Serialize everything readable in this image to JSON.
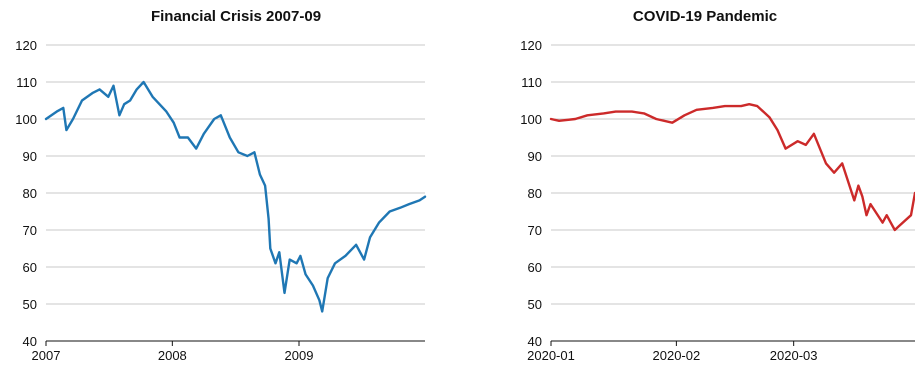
{
  "chart_data": [
    {
      "type": "line",
      "title": "Financial Crisis 2007-09",
      "xlabel": "",
      "ylabel": "",
      "ylim": [
        40,
        120
      ],
      "yticks": [
        40,
        50,
        60,
        70,
        80,
        90,
        100,
        110,
        120
      ],
      "xlim": [
        "2007-01-01",
        "2009-12-31"
      ],
      "xticks": [
        "2007",
        "2008",
        "2009"
      ],
      "grid": true,
      "color": "#1f77b4",
      "series": [
        {
          "x": [
            "2007-01-01",
            "2007-02-01",
            "2007-02-20",
            "2007-03-01",
            "2007-03-20",
            "2007-04-15",
            "2007-05-15",
            "2007-06-05",
            "2007-06-30",
            "2007-07-15",
            "2007-08-01",
            "2007-08-15",
            "2007-09-01",
            "2007-09-20",
            "2007-10-10",
            "2007-11-05",
            "2007-11-25",
            "2007-12-15",
            "2008-01-05",
            "2008-01-22",
            "2008-02-15",
            "2008-03-10",
            "2008-04-01",
            "2008-05-01",
            "2008-05-20",
            "2008-06-15",
            "2008-07-10",
            "2008-08-05",
            "2008-08-25",
            "2008-09-10",
            "2008-09-25",
            "2008-10-05",
            "2008-10-10",
            "2008-10-25",
            "2008-11-05",
            "2008-11-20",
            "2008-12-05",
            "2008-12-25",
            "2009-01-05",
            "2009-01-20",
            "2009-02-10",
            "2009-03-01",
            "2009-03-09",
            "2009-03-25",
            "2009-04-15",
            "2009-05-15",
            "2009-06-15",
            "2009-07-08",
            "2009-07-25",
            "2009-08-20",
            "2009-09-20",
            "2009-10-20",
            "2009-11-15",
            "2009-12-15",
            "2009-12-31"
          ],
          "values": [
            100,
            102,
            103,
            97,
            100,
            105,
            107,
            108,
            106,
            109,
            101,
            104,
            105,
            108,
            110,
            106,
            104,
            102,
            99,
            95,
            95,
            92,
            96,
            100,
            101,
            95,
            91,
            90,
            91,
            85,
            82,
            73,
            65,
            61,
            64,
            53,
            62,
            61,
            63,
            58,
            55,
            51,
            48,
            57,
            61,
            63,
            66,
            62,
            68,
            72,
            75,
            76,
            77,
            78,
            79
          ]
        }
      ]
    },
    {
      "type": "line",
      "title": "COVID-19 Pandemic",
      "xlabel": "",
      "ylabel": "",
      "ylim": [
        40,
        120
      ],
      "yticks": [
        40,
        50,
        60,
        70,
        80,
        90,
        100,
        110,
        120
      ],
      "xlim": [
        "2020-01-01",
        "2020-03-31"
      ],
      "xticks": [
        "2020-01",
        "2020-02",
        "2020-03"
      ],
      "grid": true,
      "color": "#cc2a2a",
      "series": [
        {
          "x": [
            "2020-01-01",
            "2020-01-03",
            "2020-01-07",
            "2020-01-10",
            "2020-01-14",
            "2020-01-17",
            "2020-01-21",
            "2020-01-24",
            "2020-01-27",
            "2020-01-31",
            "2020-02-03",
            "2020-02-06",
            "2020-02-10",
            "2020-02-13",
            "2020-02-17",
            "2020-02-19",
            "2020-02-21",
            "2020-02-24",
            "2020-02-26",
            "2020-02-28",
            "2020-03-02",
            "2020-03-04",
            "2020-03-06",
            "2020-03-09",
            "2020-03-11",
            "2020-03-13",
            "2020-03-16",
            "2020-03-17",
            "2020-03-18",
            "2020-03-19",
            "2020-03-20",
            "2020-03-23",
            "2020-03-24",
            "2020-03-25",
            "2020-03-26",
            "2020-03-27",
            "2020-03-30",
            "2020-03-31"
          ],
          "values": [
            100,
            99.5,
            100,
            101,
            101.5,
            102,
            102,
            101.5,
            100,
            99,
            101,
            102.5,
            103,
            103.5,
            103.5,
            104,
            103.5,
            100.5,
            97,
            92,
            94,
            93,
            96,
            88,
            85.5,
            88,
            78,
            82,
            79,
            74,
            77,
            72,
            74,
            72,
            70,
            71,
            74,
            80
          ]
        }
      ]
    }
  ]
}
